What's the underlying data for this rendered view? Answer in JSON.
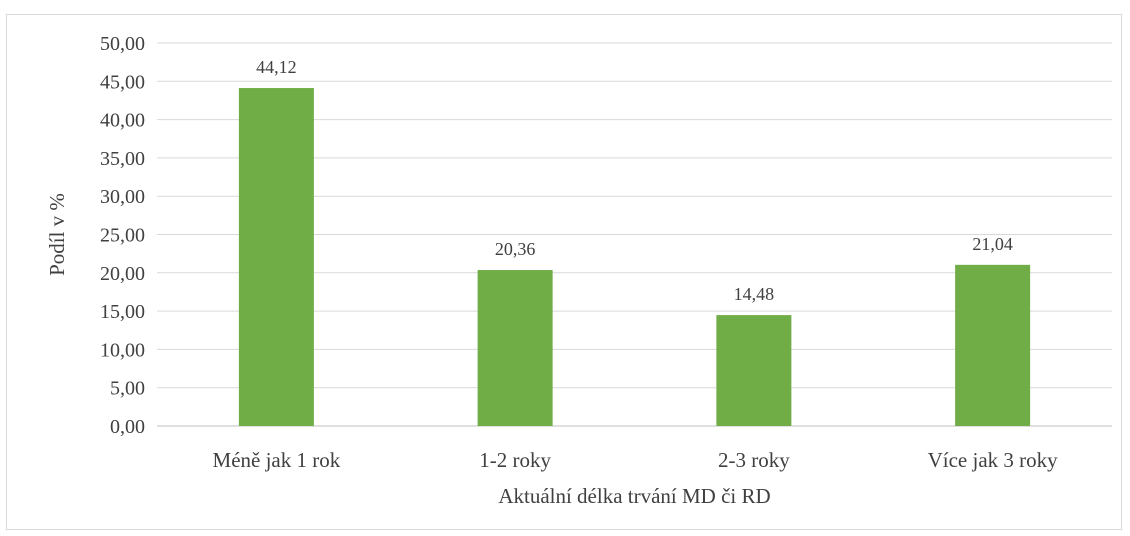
{
  "chart_data": {
    "type": "bar",
    "categories": [
      "Méně jak 1 rok",
      "1-2 roky",
      "2-3 roky",
      "Více jak 3 roky"
    ],
    "values": [
      44.12,
      20.36,
      14.48,
      21.04
    ],
    "value_labels": [
      "44,12",
      "20,36",
      "14,48",
      "21,04"
    ],
    "xlabel": "Aktuální délka trvání MD či RD",
    "ylabel": "Podíl v %",
    "ylim": [
      0,
      50
    ],
    "yticks": [
      0,
      5,
      10,
      15,
      20,
      25,
      30,
      35,
      40,
      45,
      50
    ],
    "ytick_labels": [
      "0,00",
      "5,00",
      "10,00",
      "15,00",
      "20,00",
      "25,00",
      "30,00",
      "35,00",
      "40,00",
      "45,00",
      "50,00"
    ],
    "grid": true,
    "legend": "none",
    "colors": {
      "bar": "#70ad47",
      "grid": "#d9d9d9",
      "text": "#404040"
    }
  }
}
